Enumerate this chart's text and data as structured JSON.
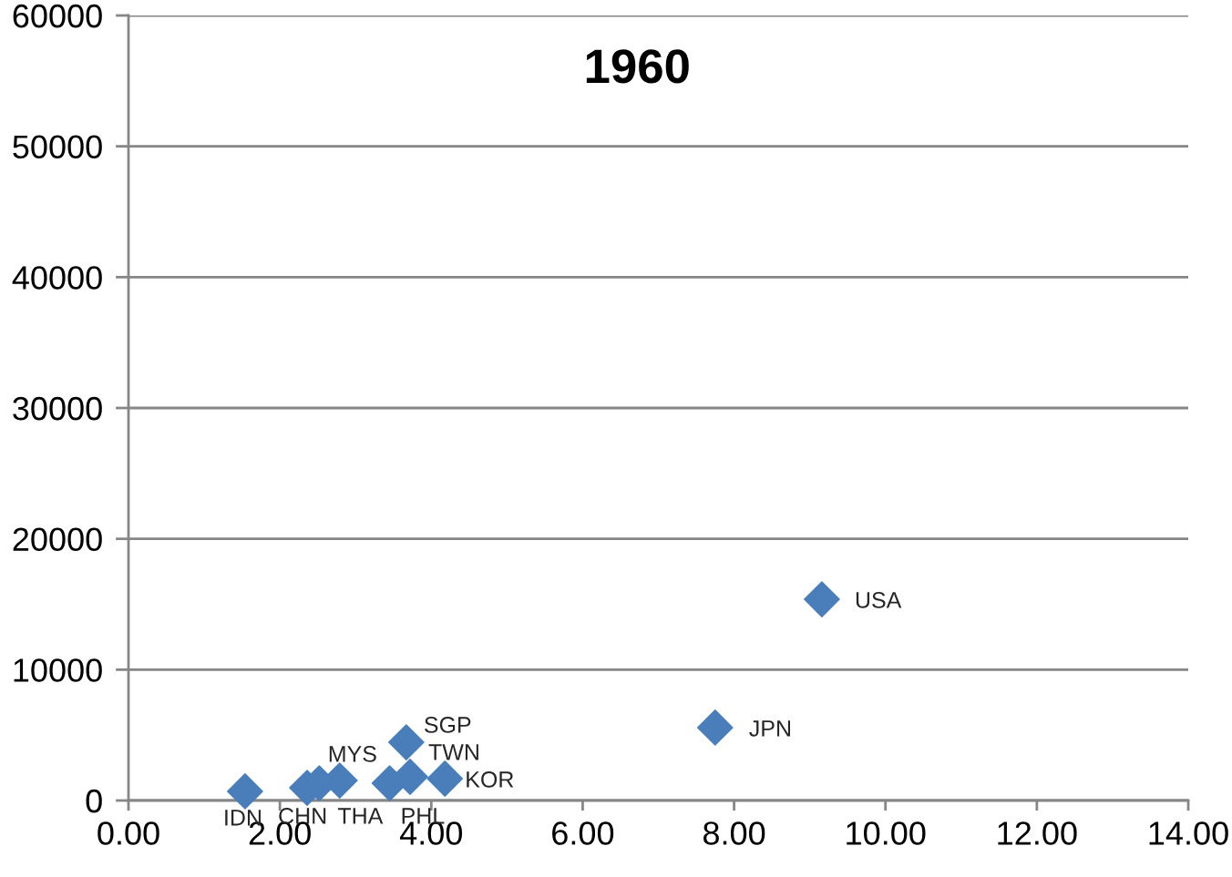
{
  "chart_data": {
    "type": "scatter",
    "title": "1960",
    "x": [
      1.54,
      2.36,
      2.52,
      2.79,
      3.45,
      3.67,
      3.72,
      4.18,
      7.75,
      9.16
    ],
    "values": [
      700,
      970,
      1320,
      1530,
      1320,
      4450,
      1810,
      1670,
      5570,
      15380
    ],
    "color": "#4a7ebb",
    "marker": "diamond",
    "annotations": [
      {
        "text": "IDN",
        "x": 1.54,
        "y": 700
      },
      {
        "text": "CHN",
        "x": 2.36,
        "y": 970
      },
      {
        "text": "THA",
        "x": 2.52,
        "y": 1320
      },
      {
        "text": "MYS",
        "x": 2.79,
        "y": 1530
      },
      {
        "text": "PHL",
        "x": 3.45,
        "y": 1320
      },
      {
        "text": "SGP",
        "x": 3.67,
        "y": 4450
      },
      {
        "text": "TWN",
        "x": 3.72,
        "y": 1810
      },
      {
        "text": "KOR",
        "x": 4.18,
        "y": 1670
      },
      {
        "text": "JPN",
        "x": 7.75,
        "y": 5570
      },
      {
        "text": "USA",
        "x": 9.16,
        "y": 15380
      }
    ],
    "xlim": [
      0,
      14
    ],
    "xticks": [
      {
        "value": 0,
        "label": "0.00"
      },
      {
        "value": 2,
        "label": "2.00"
      },
      {
        "value": 4,
        "label": "4.00"
      },
      {
        "value": 6,
        "label": "6.00"
      },
      {
        "value": 8,
        "label": "8.00"
      },
      {
        "value": 10,
        "label": "10.00"
      },
      {
        "value": 12,
        "label": "12.00"
      },
      {
        "value": 14,
        "label": "14.00"
      }
    ],
    "ylim": [
      0,
      60000
    ],
    "yticks": [
      0,
      10000,
      20000,
      30000,
      40000,
      50000,
      60000
    ],
    "grid": "y",
    "legend": false
  }
}
